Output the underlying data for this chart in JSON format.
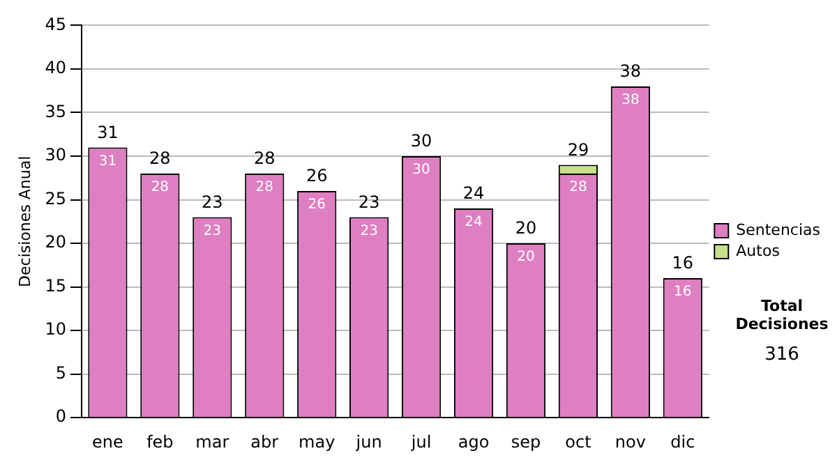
{
  "chart_data": {
    "type": "bar",
    "ylabel": "Decisiones Anual",
    "categories": [
      "ene",
      "feb",
      "mar",
      "abr",
      "may",
      "jun",
      "jul",
      "ago",
      "sep",
      "oct",
      "nov",
      "dic"
    ],
    "series": [
      {
        "name": "Sentencias",
        "color": "#dd7fc0",
        "values": [
          31,
          28,
          23,
          28,
          26,
          23,
          30,
          24,
          20,
          28,
          38,
          16
        ],
        "value_labels": [
          "31",
          "28",
          "23",
          "28",
          "26",
          "23",
          "30",
          "24",
          "20",
          "28",
          "38",
          "16"
        ]
      },
      {
        "name": "Autos",
        "color": "#c8e08a",
        "values": [
          0,
          0,
          0,
          0,
          0,
          0,
          0,
          0,
          0,
          1,
          0,
          0
        ]
      }
    ],
    "stacked": true,
    "totals": [
      "31",
      "28",
      "23",
      "28",
      "26",
      "23",
      "30",
      "24",
      "20",
      "29",
      "38",
      "16"
    ],
    "ylim": [
      0,
      45
    ],
    "yticks": [
      0,
      5,
      10,
      15,
      20,
      25,
      30,
      35,
      40,
      45
    ],
    "grid": "y",
    "legend": "right",
    "annotations": [
      "Total Decisiones",
      "316"
    ]
  }
}
